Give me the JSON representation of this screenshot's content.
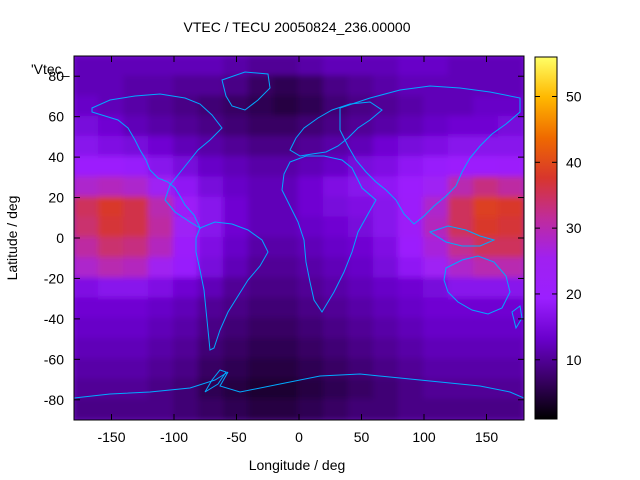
{
  "chart_data": {
    "type": "heatmap",
    "title": "VTEC / TECU 20050824_236.00000",
    "xlabel": "Longitude / deg",
    "ylabel": "Latitude / deg",
    "legend_label": "'Vtec_",
    "xlim": [
      -180,
      180
    ],
    "ylim": [
      -90,
      90
    ],
    "x_ticks": [
      -150,
      -100,
      -50,
      0,
      50,
      100,
      150
    ],
    "y_ticks": [
      -80,
      -60,
      -40,
      -20,
      0,
      20,
      40,
      60,
      80
    ],
    "colorbar": {
      "range": [
        1,
        56
      ],
      "ticks": [
        10,
        20,
        30,
        40,
        50
      ],
      "palette": [
        "#000000",
        "#3a0066",
        "#6a00cc",
        "#9b1fff",
        "#a020f0",
        "#c02c9a",
        "#d8362c",
        "#ef6a00",
        "#ffb800",
        "#ffff66"
      ]
    },
    "coastline_color": "#00aaff",
    "map_overlay": "world coastlines",
    "field_description_grid": {
      "lon_step": 20,
      "lat_step": 10,
      "lons": [
        -170,
        -150,
        -130,
        -110,
        -90,
        -70,
        -50,
        -30,
        -10,
        10,
        30,
        50,
        70,
        90,
        110,
        130,
        150,
        170
      ],
      "lats": [
        85,
        75,
        65,
        55,
        45,
        35,
        25,
        15,
        5,
        -5,
        -15,
        -25,
        -35,
        -45,
        -55,
        -65,
        -75,
        -85
      ],
      "values": [
        [
          12,
          12,
          12,
          12,
          12,
          12,
          11,
          10,
          10,
          11,
          12,
          12,
          12,
          13,
          13,
          12,
          12,
          12
        ],
        [
          12,
          12,
          11,
          11,
          10,
          10,
          9,
          7,
          6,
          7,
          9,
          10,
          11,
          12,
          12,
          12,
          12,
          12
        ],
        [
          13,
          12,
          11,
          10,
          9,
          8,
          7,
          6,
          5,
          6,
          8,
          9,
          10,
          11,
          12,
          12,
          13,
          13
        ],
        [
          15,
          14,
          12,
          11,
          10,
          9,
          8,
          7,
          7,
          8,
          9,
          10,
          11,
          12,
          13,
          14,
          14,
          15
        ],
        [
          17,
          16,
          15,
          14,
          12,
          11,
          10,
          9,
          9,
          10,
          11,
          12,
          14,
          15,
          16,
          17,
          17,
          17
        ],
        [
          20,
          20,
          19,
          17,
          15,
          13,
          12,
          11,
          11,
          12,
          13,
          15,
          16,
          18,
          19,
          20,
          20,
          21
        ],
        [
          28,
          29,
          28,
          24,
          18,
          15,
          13,
          12,
          12,
          14,
          16,
          17,
          18,
          20,
          24,
          30,
          33,
          31
        ],
        [
          35,
          38,
          36,
          30,
          22,
          17,
          14,
          12,
          12,
          14,
          15,
          16,
          17,
          21,
          28,
          35,
          39,
          38
        ],
        [
          34,
          37,
          36,
          31,
          23,
          17,
          14,
          12,
          12,
          13,
          14,
          15,
          17,
          22,
          29,
          35,
          38,
          37
        ],
        [
          31,
          34,
          33,
          29,
          21,
          16,
          13,
          11,
          11,
          12,
          13,
          14,
          16,
          20,
          27,
          32,
          35,
          35
        ],
        [
          28,
          30,
          29,
          25,
          19,
          15,
          12,
          10,
          10,
          11,
          12,
          13,
          15,
          18,
          24,
          28,
          30,
          30
        ],
        [
          16,
          17,
          17,
          16,
          14,
          12,
          10,
          9,
          9,
          10,
          11,
          12,
          13,
          14,
          15,
          17,
          17,
          17
        ],
        [
          14,
          14,
          14,
          13,
          12,
          10,
          9,
          8,
          8,
          9,
          10,
          11,
          12,
          13,
          14,
          14,
          14,
          14
        ],
        [
          13,
          13,
          13,
          12,
          11,
          9,
          8,
          7,
          7,
          8,
          9,
          10,
          11,
          12,
          13,
          13,
          13,
          13
        ],
        [
          12,
          12,
          12,
          11,
          10,
          8,
          7,
          6,
          6,
          7,
          8,
          9,
          10,
          11,
          12,
          12,
          12,
          12
        ],
        [
          11,
          11,
          11,
          10,
          9,
          7,
          6,
          5,
          5,
          6,
          7,
          8,
          9,
          10,
          11,
          11,
          11,
          11
        ],
        [
          10,
          10,
          10,
          9,
          8,
          6,
          5,
          4,
          4,
          5,
          6,
          7,
          8,
          9,
          10,
          10,
          10,
          10
        ],
        [
          9,
          9,
          9,
          9,
          8,
          7,
          6,
          5,
          5,
          6,
          7,
          8,
          8,
          9,
          9,
          9,
          9,
          9
        ]
      ]
    }
  }
}
